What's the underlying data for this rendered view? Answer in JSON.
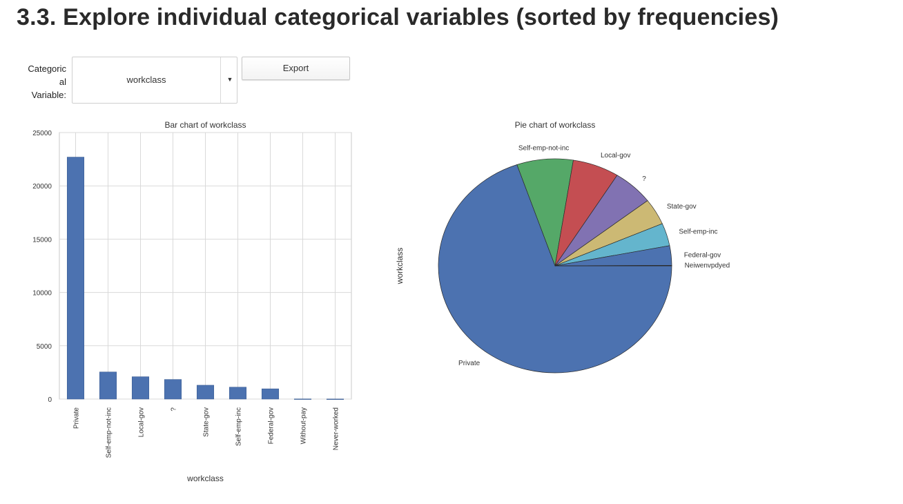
{
  "page": {
    "heading": "3.3. Explore individual categorical variables (sorted by frequencies)"
  },
  "controls": {
    "variable_label_lines": [
      "Categoric",
      "al",
      "Variable:"
    ],
    "selected_variable": "workclass",
    "caret_icon": "caret-down-icon",
    "export_label": "Export"
  },
  "colors": {
    "bar": "#4c72b0",
    "grid": "#d9d9d9",
    "axis": "#c8c8c8"
  },
  "chart_data": [
    {
      "type": "bar",
      "title": "Bar chart of workclass",
      "xlabel": "workclass",
      "ylabel": "",
      "categories": [
        "Private",
        "Self-emp-not-inc",
        "Local-gov",
        "?",
        "State-gov",
        "Self-emp-inc",
        "Federal-gov",
        "Without-pay",
        "Never-worked"
      ],
      "values": [
        22696,
        2541,
        2093,
        1836,
        1298,
        1116,
        960,
        14,
        7
      ],
      "yticks": [
        "0",
        "5000",
        "10000",
        "15000",
        "20000",
        "25000"
      ],
      "ylim": [
        0,
        25000
      ],
      "grid": true
    },
    {
      "type": "pie",
      "title": "Pie chart of workclass",
      "ylabel": "workclass",
      "labels": [
        "Private",
        "Self-emp-not-inc",
        "Local-gov",
        "?",
        "State-gov",
        "Self-emp-inc",
        "Federal-gov",
        "Without-pay",
        "Never-worked"
      ],
      "values": [
        22696,
        2541,
        2093,
        1836,
        1298,
        1116,
        960,
        14,
        7
      ],
      "colors": [
        "#4c72b0",
        "#55a868",
        "#c44e52",
        "#8172b2",
        "#ccb974",
        "#64b5cd",
        "#4c72b0",
        "#55a868",
        "#c44e52"
      ],
      "overlapped_label": "Neiwenvpdyed",
      "startangle": 0,
      "direction": "clockwise"
    }
  ]
}
